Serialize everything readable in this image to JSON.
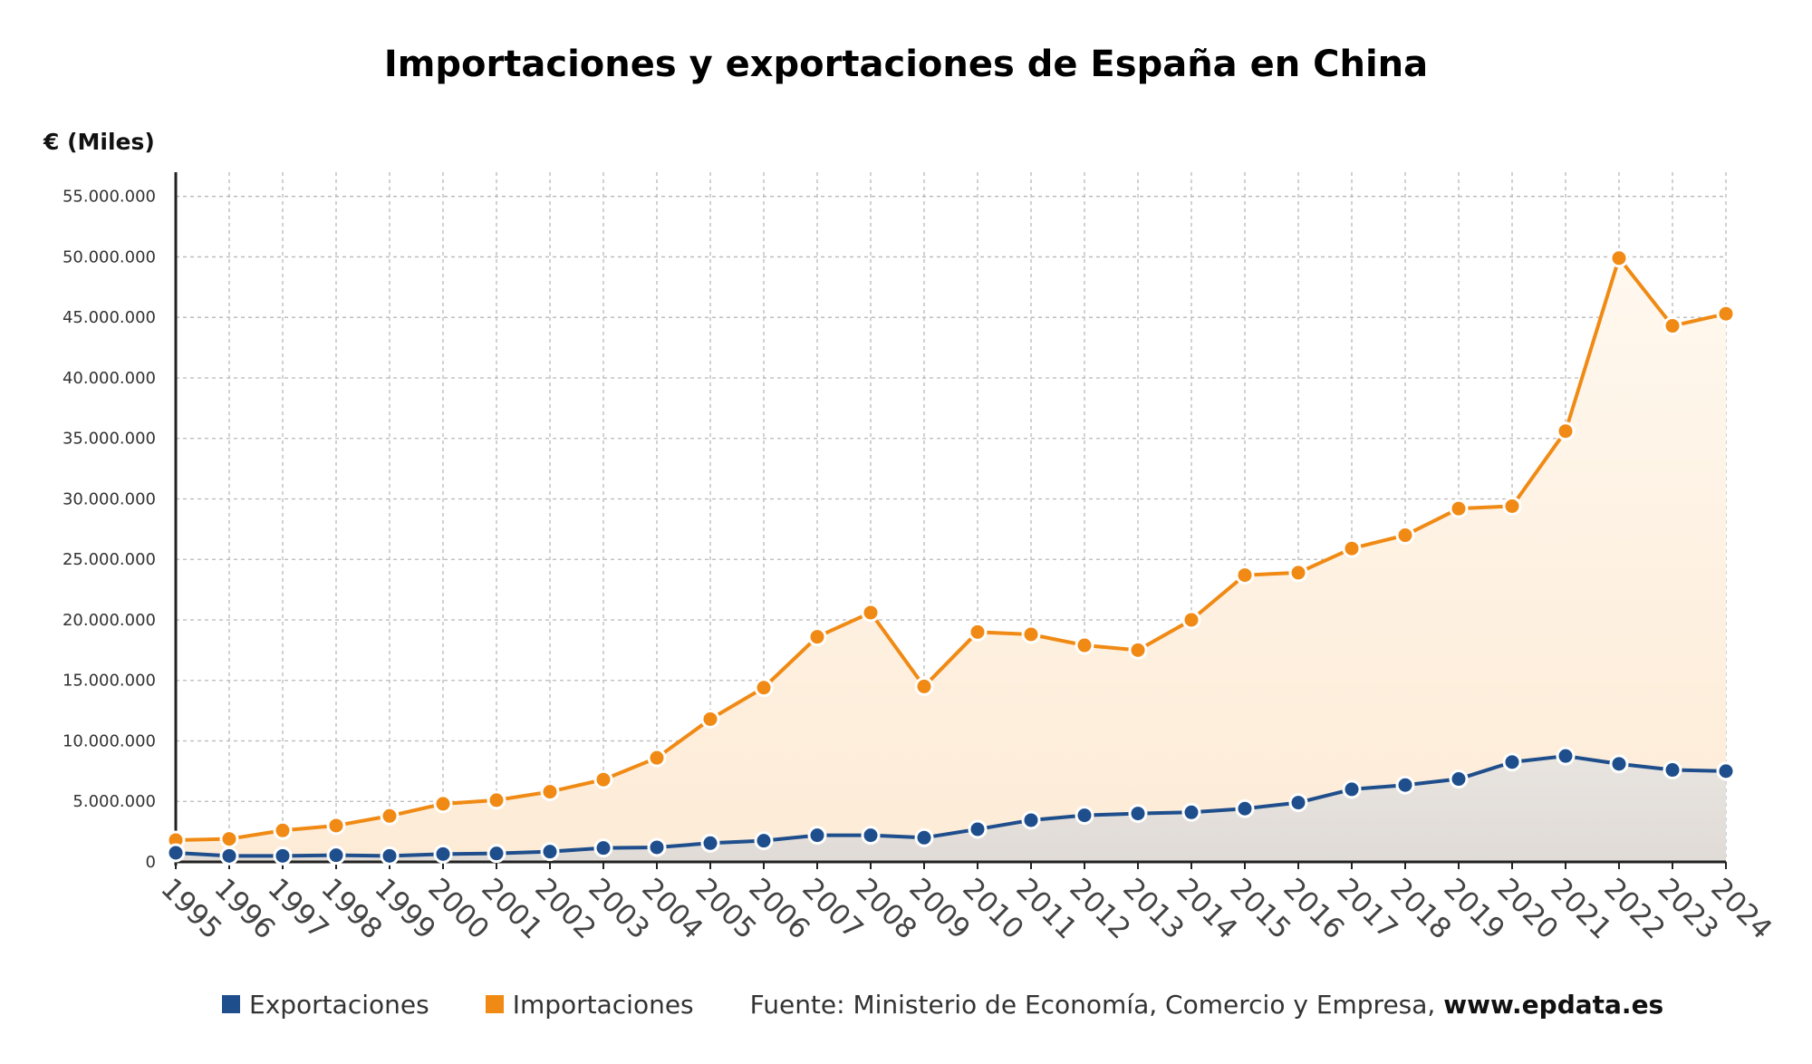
{
  "chart_data": {
    "type": "area",
    "title": "Importaciones y exportaciones de España en China",
    "ylabel": "€ (Miles)",
    "xlabel": "",
    "x": [
      "1995",
      "1996",
      "1997",
      "1998",
      "1999",
      "2000",
      "2001",
      "2002",
      "2003",
      "2004",
      "2005",
      "2006",
      "2007",
      "2008",
      "2009",
      "2010",
      "2011",
      "2012",
      "2013",
      "2014",
      "2015",
      "2016",
      "2017",
      "2018",
      "2019",
      "2020",
      "2021",
      "2022",
      "2023",
      "2024"
    ],
    "ylim": [
      0,
      57000000
    ],
    "yticks": [
      0,
      5000000,
      10000000,
      15000000,
      20000000,
      25000000,
      30000000,
      35000000,
      40000000,
      45000000,
      50000000,
      55000000
    ],
    "ytick_labels": [
      "0",
      "5.000.000",
      "10.000.000",
      "15.000.000",
      "20.000.000",
      "25.000.000",
      "30.000.000",
      "35.000.000",
      "40.000.000",
      "45.000.000",
      "50.000.000",
      "55.000.000"
    ],
    "grid": true,
    "legend_position": "bottom",
    "series": [
      {
        "name": "Exportaciones",
        "color": "#1f4e8c",
        "values": [
          750000,
          500000,
          500000,
          550000,
          500000,
          650000,
          700000,
          850000,
          1150000,
          1200000,
          1550000,
          1750000,
          2200000,
          2200000,
          2000000,
          2700000,
          3450000,
          3850000,
          4000000,
          4100000,
          4400000,
          4900000,
          6000000,
          6350000,
          6850000,
          8250000,
          8750000,
          8100000,
          7600000,
          7500000
        ]
      },
      {
        "name": "Importaciones",
        "color": "#f08a14",
        "values": [
          1800000,
          1900000,
          2600000,
          3000000,
          3800000,
          4800000,
          5100000,
          5800000,
          6800000,
          8600000,
          11800000,
          14400000,
          18600000,
          20600000,
          14500000,
          19000000,
          18800000,
          17900000,
          17500000,
          20000000,
          23700000,
          23900000,
          25900000,
          27000000,
          29200000,
          29400000,
          35600000,
          49900000,
          44300000,
          45300000
        ]
      }
    ]
  },
  "legend": {
    "exports_label": "Exportaciones",
    "imports_label": "Importaciones",
    "exports_color": "#1f4e8c",
    "imports_color": "#f08a14"
  },
  "source": {
    "text": "Fuente: Ministerio de Economía, Comercio y Empresa, ",
    "url": "www.epdata.es"
  }
}
